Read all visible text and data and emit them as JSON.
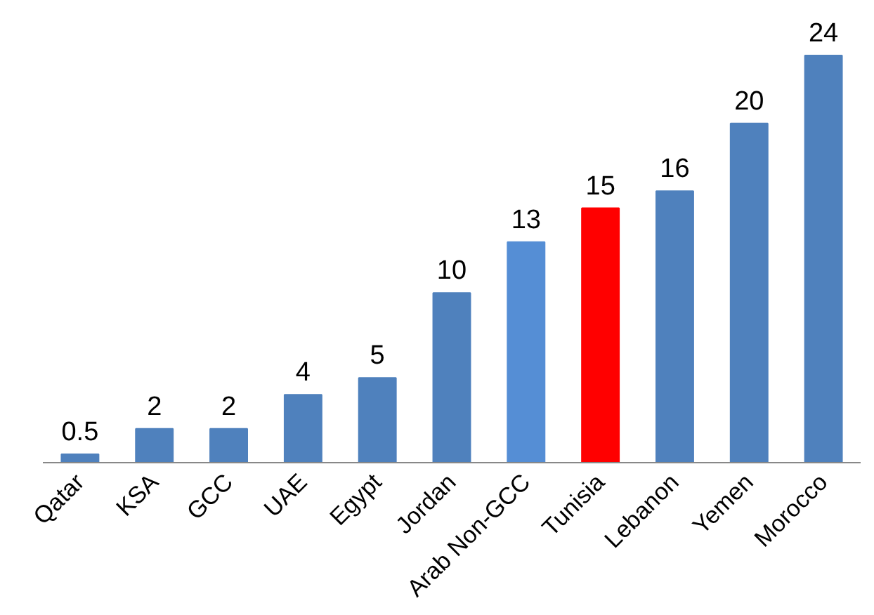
{
  "chart_data": {
    "type": "bar",
    "categories": [
      "Qatar",
      "KSA",
      "GCC",
      "UAE",
      "Egypt",
      "Jordan",
      "Arab Non-GCC",
      "Tunisia",
      "Lebanon",
      "Yemen",
      "Morocco"
    ],
    "values": [
      0.5,
      2,
      2,
      4,
      5,
      10,
      13,
      15,
      16,
      20,
      24
    ],
    "colors": [
      "#4f81bd",
      "#4f81bd",
      "#4f81bd",
      "#4f81bd",
      "#4f81bd",
      "#4f81bd",
      "#558ed5",
      "#ff0000",
      "#4f81bd",
      "#4f81bd",
      "#4f81bd"
    ],
    "data_labels": true
  }
}
